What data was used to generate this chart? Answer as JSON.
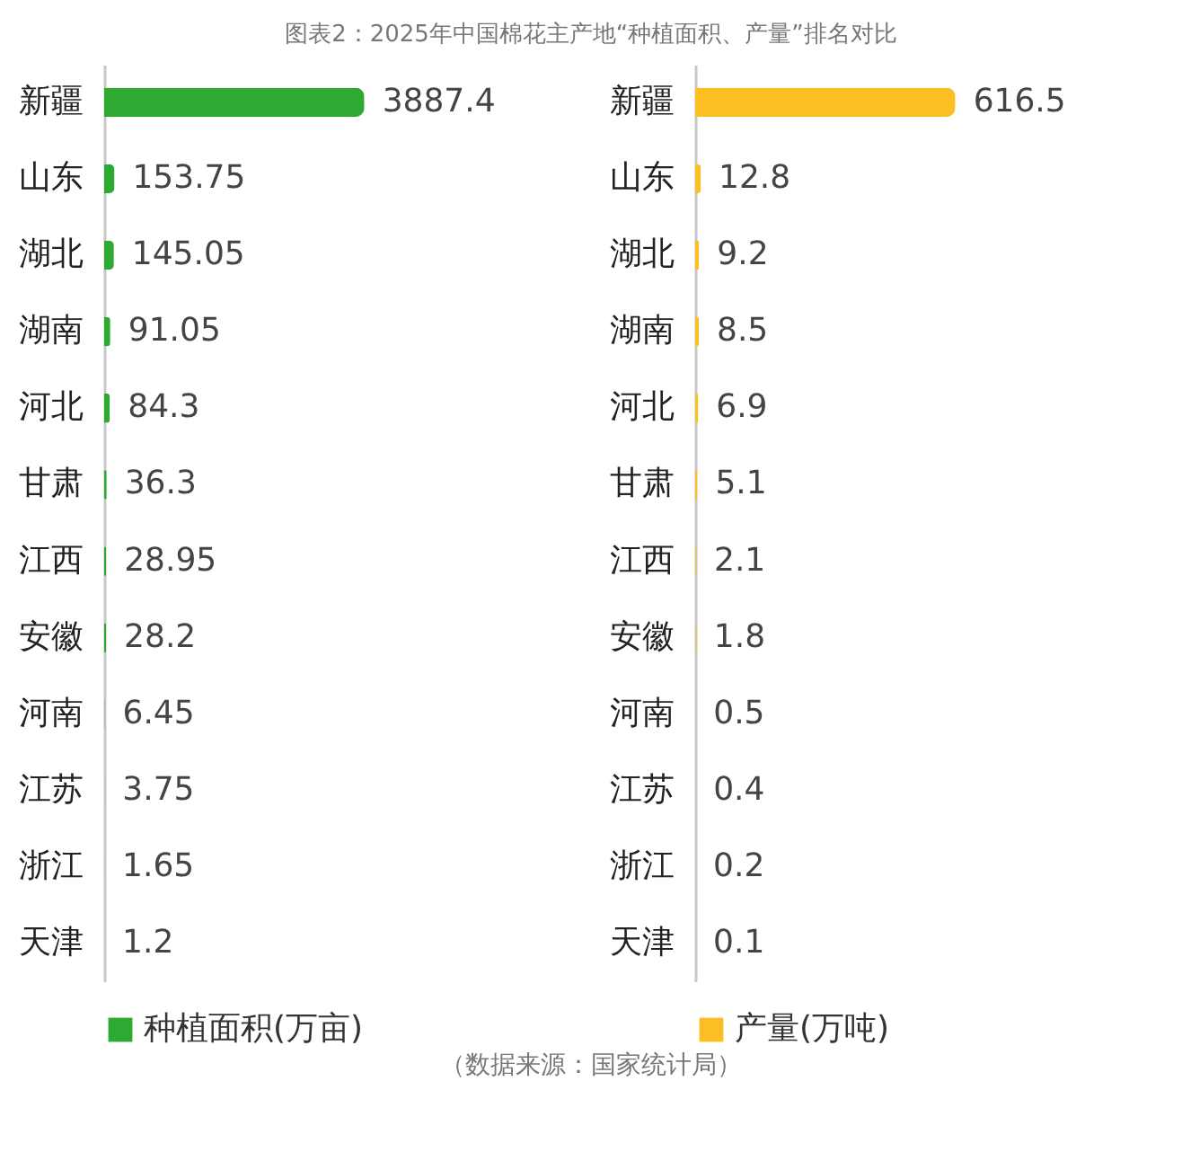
{
  "chart_data": [
    {
      "type": "bar",
      "orientation": "horizontal",
      "title": "图表2：2025年中国棉花主产地“种植面积、产量”排名对比",
      "categories": [
        "新疆",
        "山东",
        "湖北",
        "湖南",
        "河北",
        "甘肃",
        "江西",
        "安徽",
        "河南",
        "江苏",
        "浙江",
        "天津"
      ],
      "series": [
        {
          "name": "种植面积(万亩)",
          "color": "#2eaa32",
          "values": [
            3887.4,
            153.75,
            145.05,
            91.05,
            84.3,
            36.3,
            28.95,
            28.2,
            6.45,
            3.75,
            1.65,
            1.2
          ]
        }
      ],
      "data_labels": true,
      "legend": "bottom"
    },
    {
      "type": "bar",
      "orientation": "horizontal",
      "categories": [
        "新疆",
        "山东",
        "湖北",
        "湖南",
        "河北",
        "甘肃",
        "江西",
        "安徽",
        "河南",
        "江苏",
        "浙江",
        "天津"
      ],
      "series": [
        {
          "name": "产量(万吨)",
          "color": "#fbbf24",
          "values": [
            616.5,
            12.8,
            9.2,
            8.5,
            6.9,
            5.1,
            2.1,
            1.8,
            0.5,
            0.4,
            0.2,
            0.1
          ]
        }
      ],
      "data_labels": true,
      "legend": "bottom",
      "annotations": [
        "（数据来源：国家统计局）"
      ]
    }
  ]
}
